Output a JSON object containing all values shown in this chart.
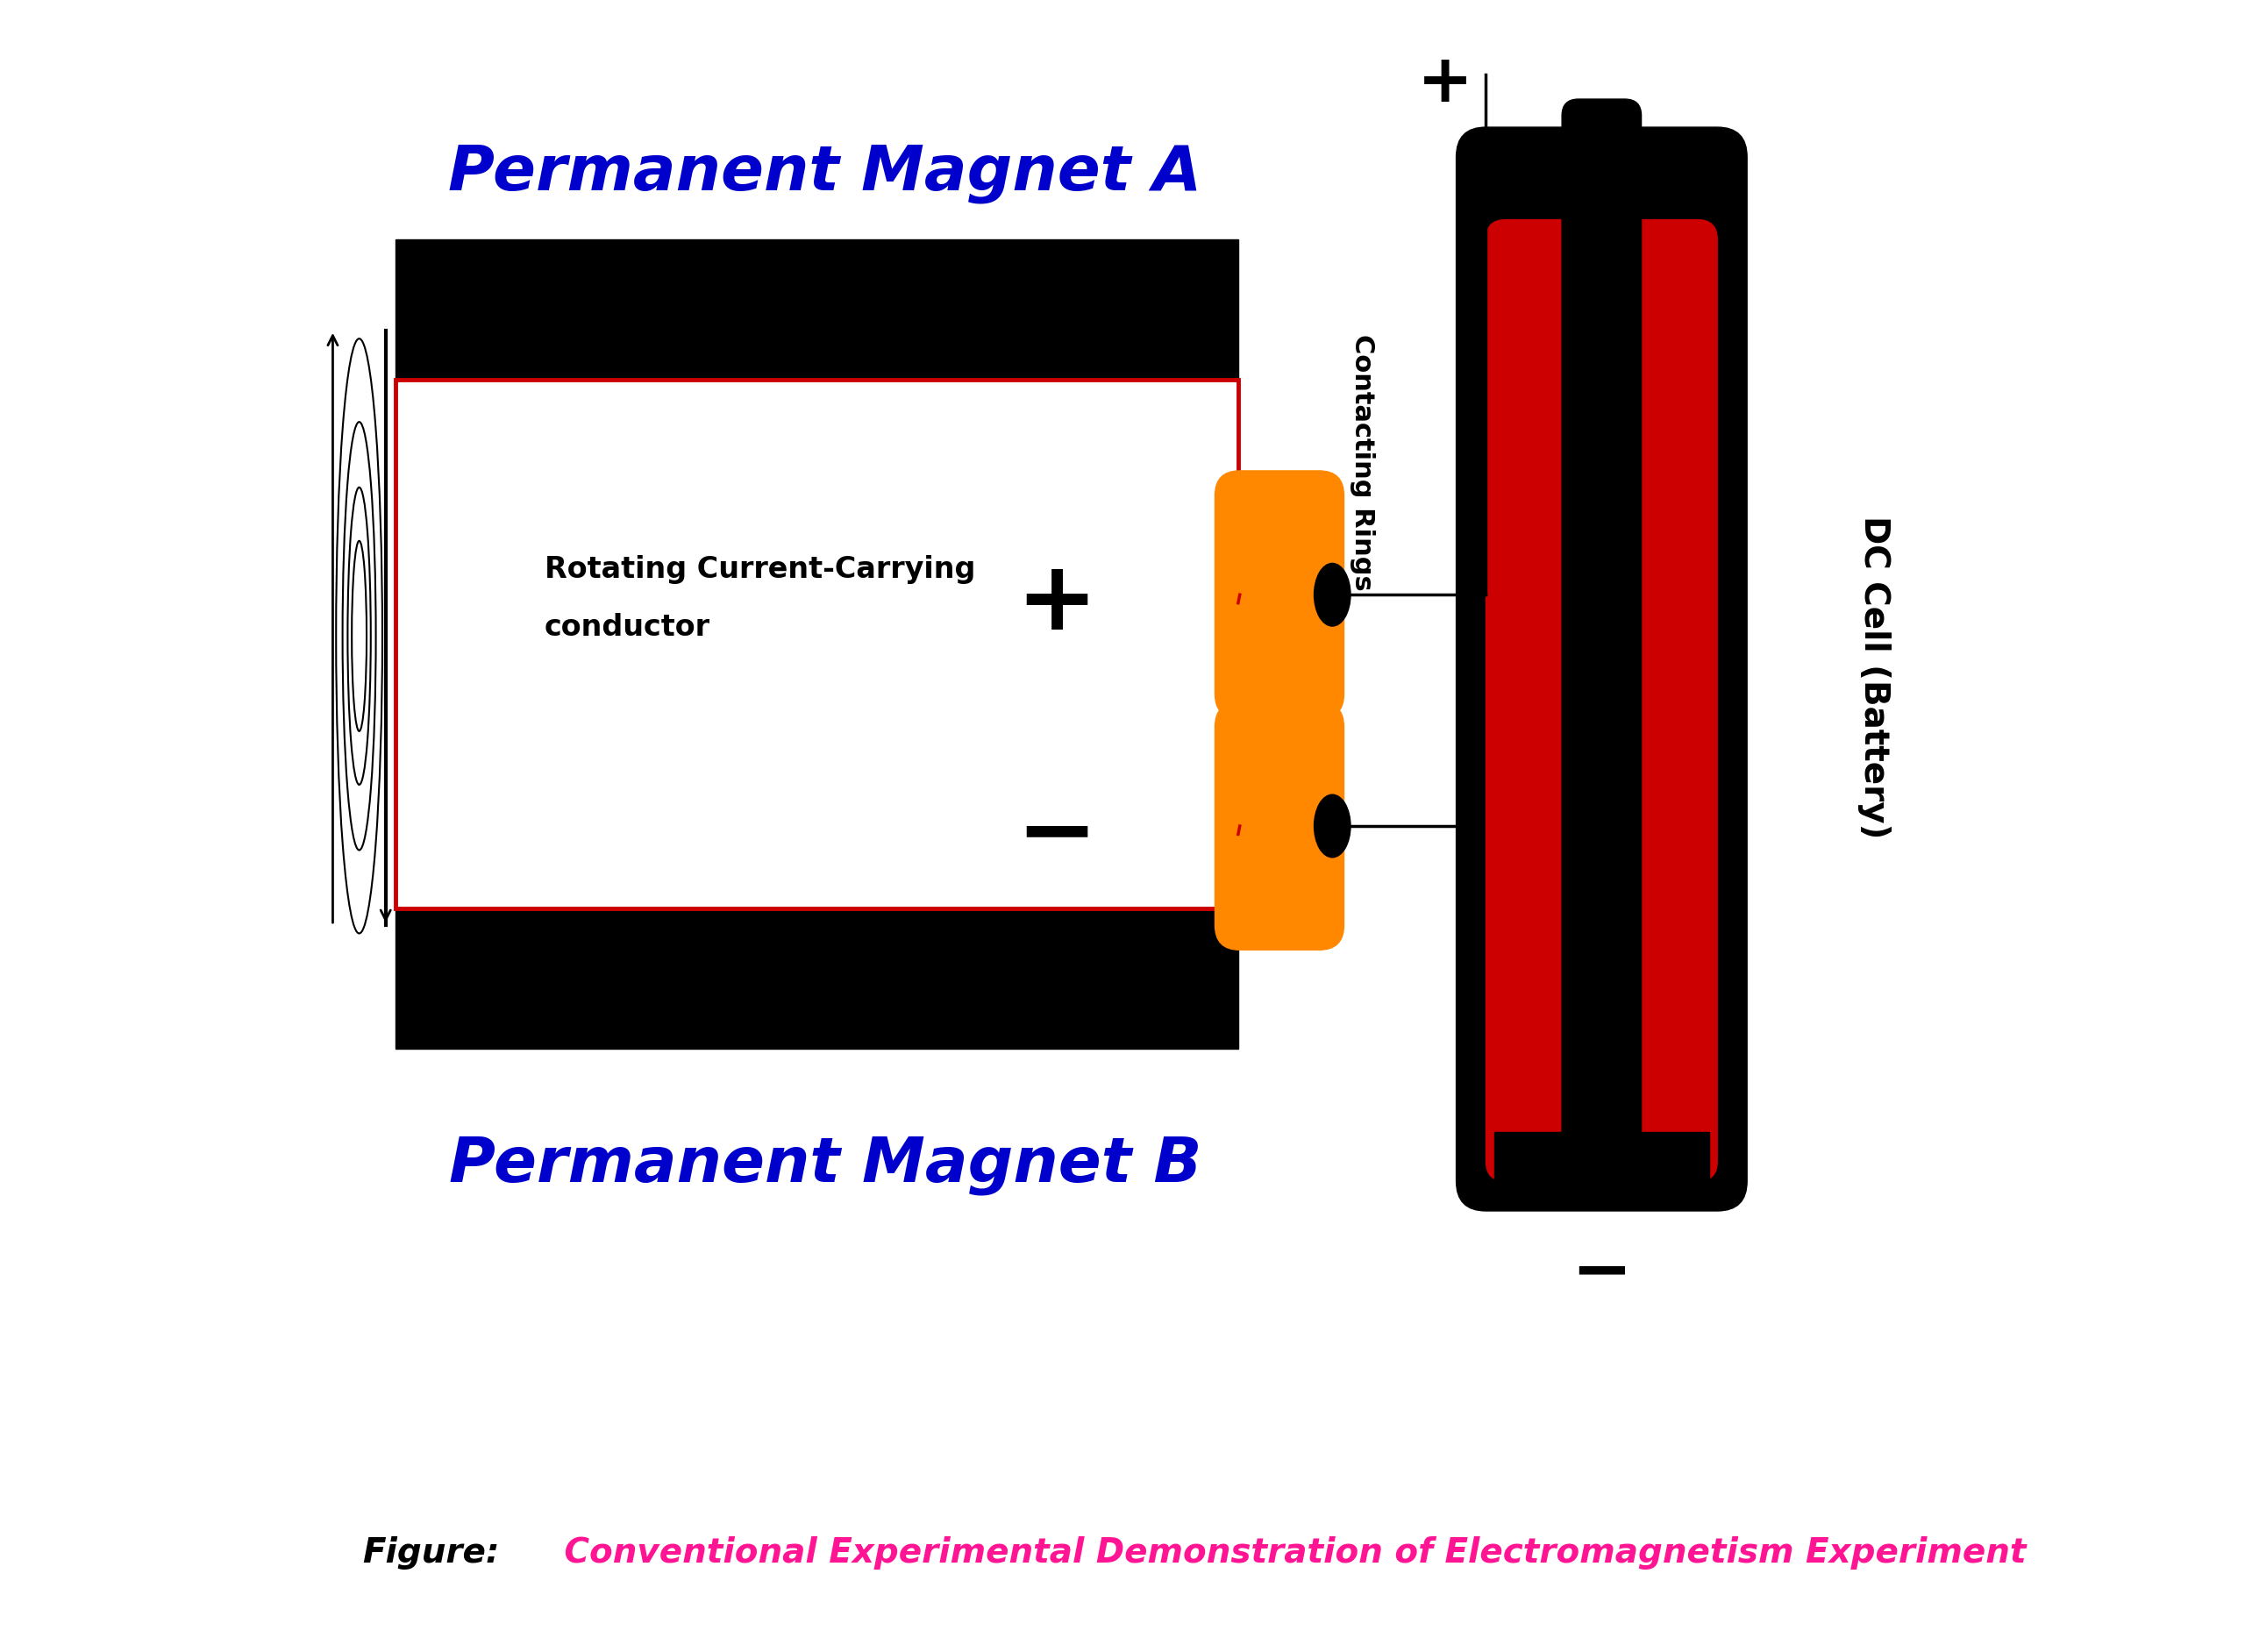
{
  "bg_color": "#ffffff",
  "magnet_a_label": "Permanent Magnet A",
  "magnet_b_label": "Permanent Magnet B",
  "magnet_color": "#000000",
  "conductor_label_line1": "Rotating Current-Carrying",
  "conductor_label_line2": "conductor",
  "plus_symbol": "+",
  "minus_symbol": "−",
  "contacting_rings_label": "Contacting Rings",
  "dc_cell_label": "DC Cell (Battery)",
  "figure_label_black": "Figure:",
  "figure_label_pink": " Conventional Experimental Demonstration of Electromagnetism Experiment",
  "blue_color": "#0000cc",
  "red_color": "#cc0000",
  "orange_color": "#ff8800",
  "black_color": "#000000",
  "pink_color": "#ff1493",
  "wire_color": "#000000"
}
